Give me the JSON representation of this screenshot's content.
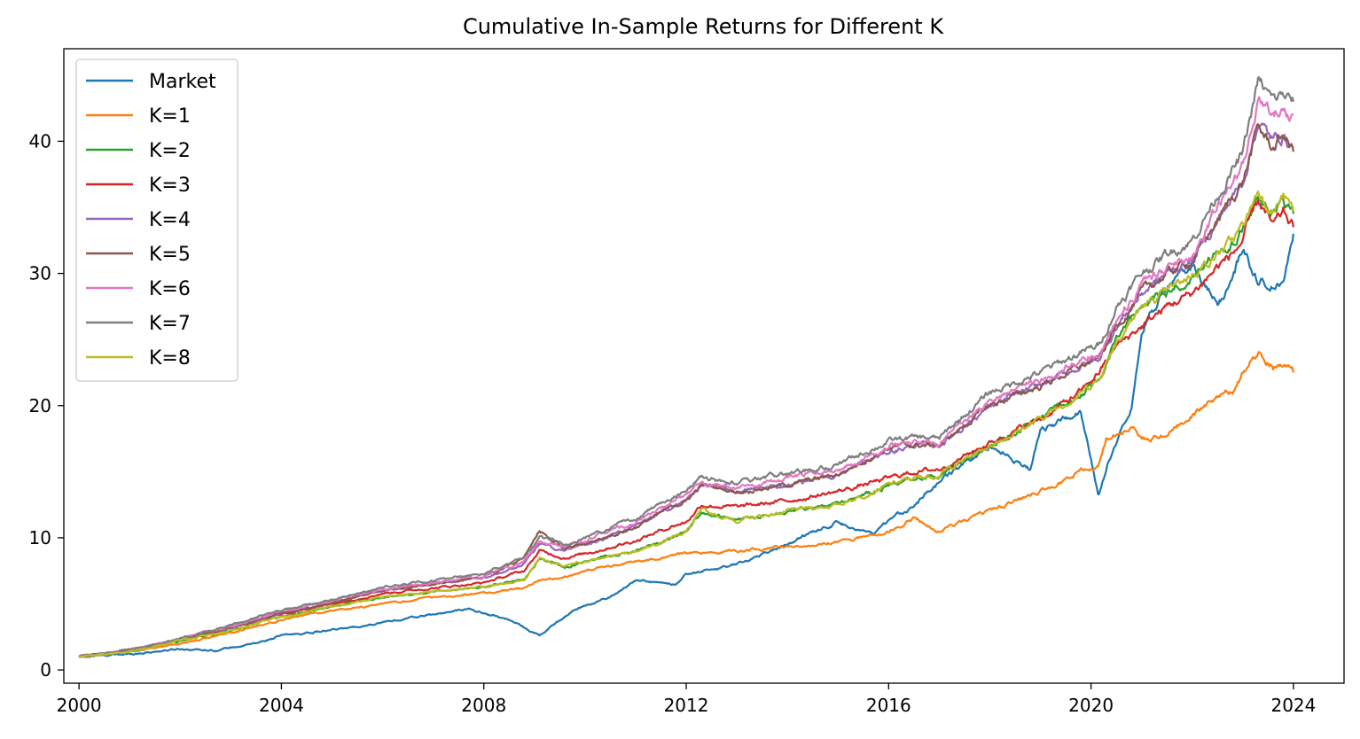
{
  "chart_data": {
    "type": "line",
    "title": "Cumulative In-Sample Returns for Different K",
    "xlabel": "",
    "ylabel": "",
    "xlim": [
      1999.7,
      2025.0
    ],
    "ylim": [
      -1.0,
      47.0
    ],
    "x_ticks": [
      2000,
      2004,
      2008,
      2012,
      2016,
      2020,
      2024
    ],
    "x_tick_labels": [
      "2000",
      "2004",
      "2008",
      "2012",
      "2016",
      "2020",
      "2024"
    ],
    "y_ticks": [
      0,
      10,
      20,
      30,
      40
    ],
    "y_tick_labels": [
      "0",
      "10",
      "20",
      "30",
      "40"
    ],
    "grid": false,
    "legend_position": "upper-left",
    "series": [
      {
        "name": "Market",
        "color": "#1f77b4",
        "x": [
          2000,
          2001,
          2002,
          2002.7,
          2003.5,
          2004,
          2005,
          2006,
          2007,
          2007.7,
          2008.5,
          2009.1,
          2009.8,
          2010.5,
          2011,
          2011.8,
          2012,
          2013,
          2014,
          2014.5,
          2015,
          2015.7,
          2016,
          2016.5,
          2017,
          2018,
          2018.8,
          2019,
          2019.8,
          2020.15,
          2020.35,
          2020.8,
          2021,
          2021.5,
          2022,
          2022.5,
          2022.8,
          2023,
          2023.3,
          2023.8,
          2024
        ],
        "values": [
          1.0,
          1.2,
          1.6,
          1.5,
          2.0,
          2.6,
          3.0,
          3.6,
          4.2,
          4.6,
          3.8,
          2.6,
          4.6,
          5.5,
          6.8,
          6.4,
          7.2,
          8.0,
          9.5,
          10.5,
          11.2,
          10.2,
          11.2,
          12.5,
          14.2,
          17.0,
          15.2,
          18.2,
          19.5,
          13.0,
          16.0,
          20.0,
          26.0,
          29.0,
          30.5,
          27.5,
          29.5,
          32.0,
          29.5,
          29.0,
          33.0
        ]
      },
      {
        "name": "K=1",
        "color": "#ff7f0e",
        "x": [
          2000,
          2001,
          2002,
          2003,
          2004,
          2005,
          2006,
          2007,
          2008,
          2008.8,
          2009.1,
          2009.6,
          2010,
          2011,
          2011.8,
          2012,
          2013,
          2014,
          2015,
          2016,
          2016.5,
          2017,
          2018,
          2019,
          2019.8,
          2020.15,
          2020.3,
          2020.8,
          2021,
          2021.5,
          2022,
          2022.5,
          2022.8,
          2023,
          2023.3,
          2023.6,
          2023.8,
          2024
        ],
        "values": [
          1.0,
          1.4,
          2.0,
          2.8,
          3.8,
          4.5,
          5.0,
          5.5,
          5.8,
          6.2,
          6.8,
          7.0,
          7.5,
          8.2,
          8.7,
          8.8,
          9.0,
          9.3,
          9.7,
          10.5,
          11.5,
          10.5,
          12.0,
          13.5,
          15.0,
          15.5,
          17.5,
          18.5,
          17.5,
          17.8,
          19.5,
          20.5,
          21.0,
          22.5,
          24.0,
          23.0,
          23.2,
          22.5
        ]
      },
      {
        "name": "K=2",
        "color": "#2ca02c",
        "x": [
          2000,
          2001,
          2002,
          2003,
          2004,
          2005,
          2006,
          2007,
          2008,
          2008.8,
          2009.1,
          2009.6,
          2010,
          2011,
          2011.8,
          2012,
          2012.3,
          2013,
          2014,
          2015,
          2016,
          2016.5,
          2017,
          2018,
          2019,
          2019.8,
          2020.15,
          2020.5,
          2021,
          2021.5,
          2022,
          2022.5,
          2022.8,
          2023,
          2023.3,
          2023.6,
          2023.8,
          2024
        ],
        "values": [
          1.0,
          1.4,
          2.2,
          3.0,
          4.0,
          4.8,
          5.5,
          5.9,
          6.3,
          6.8,
          8.5,
          7.8,
          8.2,
          9.0,
          10.2,
          10.5,
          12.0,
          11.3,
          12.0,
          12.5,
          14.0,
          14.5,
          14.8,
          17.0,
          19.0,
          21.0,
          22.0,
          25.0,
          27.5,
          28.5,
          30.0,
          31.5,
          32.5,
          33.5,
          36.0,
          34.5,
          35.5,
          34.5
        ]
      },
      {
        "name": "K=3",
        "color": "#d62728",
        "x": [
          2000,
          2001,
          2002,
          2003,
          2004,
          2005,
          2006,
          2007,
          2008,
          2008.8,
          2009.1,
          2009.6,
          2010,
          2011,
          2011.8,
          2012,
          2012.3,
          2013,
          2014,
          2015,
          2016,
          2016.5,
          2017,
          2018,
          2019,
          2019.8,
          2020.15,
          2020.5,
          2021,
          2021.5,
          2022,
          2022.5,
          2022.8,
          2023,
          2023.3,
          2023.6,
          2023.8,
          2024
        ],
        "values": [
          1.0,
          1.5,
          2.3,
          3.2,
          4.2,
          5.0,
          5.8,
          6.2,
          6.6,
          7.5,
          9.0,
          8.5,
          8.8,
          9.8,
          11.0,
          11.2,
          12.5,
          12.3,
          12.8,
          13.5,
          14.5,
          15.0,
          15.2,
          17.2,
          19.0,
          21.0,
          22.5,
          24.5,
          26.0,
          27.5,
          28.5,
          30.5,
          31.5,
          32.5,
          35.5,
          33.5,
          34.5,
          33.5
        ]
      },
      {
        "name": "K=4",
        "color": "#9467bd",
        "x": [
          2000,
          2001,
          2002,
          2003,
          2004,
          2005,
          2006,
          2007,
          2008,
          2008.8,
          2009.1,
          2009.6,
          2010,
          2011,
          2011.8,
          2012,
          2012.3,
          2013,
          2014,
          2015,
          2016,
          2016.5,
          2017,
          2018,
          2019,
          2019.8,
          2020.15,
          2020.5,
          2021,
          2021.5,
          2022,
          2022.5,
          2023,
          2023.3,
          2023.6,
          2023.8,
          2024
        ],
        "values": [
          1.0,
          1.5,
          2.3,
          3.2,
          4.3,
          5.1,
          6.0,
          6.5,
          7.0,
          8.0,
          9.5,
          9.0,
          9.5,
          10.8,
          12.5,
          12.8,
          14.0,
          13.5,
          14.0,
          14.8,
          16.5,
          17.0,
          17.0,
          20.0,
          21.5,
          23.0,
          23.5,
          26.0,
          28.5,
          30.0,
          31.0,
          34.0,
          37.0,
          41.5,
          40.0,
          40.5,
          39.5
        ]
      },
      {
        "name": "K=5",
        "color": "#8c564b",
        "x": [
          2000,
          2001,
          2002,
          2003,
          2004,
          2005,
          2006,
          2007,
          2008,
          2008.8,
          2009.1,
          2009.6,
          2010,
          2011,
          2011.8,
          2012,
          2012.3,
          2013,
          2014,
          2015,
          2016,
          2016.5,
          2017,
          2018,
          2019,
          2019.8,
          2020.15,
          2020.5,
          2021,
          2021.5,
          2022,
          2022.5,
          2023,
          2023.3,
          2023.6,
          2023.8,
          2024
        ],
        "values": [
          1.0,
          1.5,
          2.3,
          3.2,
          4.3,
          5.1,
          6.0,
          6.5,
          7.0,
          8.5,
          10.5,
          9.2,
          9.5,
          10.8,
          12.5,
          12.8,
          14.0,
          13.5,
          14.0,
          14.8,
          16.8,
          17.0,
          17.0,
          20.0,
          21.5,
          23.0,
          23.5,
          26.0,
          28.5,
          30.0,
          31.0,
          34.0,
          37.0,
          41.0,
          39.5,
          40.5,
          39.2
        ]
      },
      {
        "name": "K=6",
        "color": "#e377c2",
        "x": [
          2000,
          2001,
          2002,
          2003,
          2004,
          2005,
          2006,
          2007,
          2008,
          2008.8,
          2009.1,
          2009.6,
          2010,
          2011,
          2011.8,
          2012,
          2012.3,
          2013,
          2014,
          2015,
          2016,
          2016.5,
          2017,
          2018,
          2019,
          2019.8,
          2020.15,
          2020.5,
          2021,
          2021.5,
          2022,
          2022.5,
          2023,
          2023.3,
          2023.6,
          2023.8,
          2024
        ],
        "values": [
          1.0,
          1.5,
          2.4,
          3.3,
          4.4,
          5.2,
          6.1,
          6.6,
          7.1,
          8.2,
          9.8,
          9.3,
          9.8,
          11.2,
          12.8,
          13.2,
          14.2,
          13.8,
          14.5,
          15.2,
          17.0,
          17.3,
          17.2,
          20.5,
          22.0,
          23.5,
          24.0,
          26.5,
          29.0,
          30.5,
          31.5,
          35.0,
          38.0,
          43.0,
          42.0,
          42.5,
          42.0
        ]
      },
      {
        "name": "K=7",
        "color": "#7f7f7f",
        "x": [
          2000,
          2001,
          2002,
          2003,
          2004,
          2005,
          2006,
          2007,
          2008,
          2008.8,
          2009.1,
          2009.6,
          2010,
          2011,
          2011.8,
          2012,
          2012.3,
          2013,
          2014,
          2015,
          2016,
          2016.5,
          2017,
          2018,
          2019,
          2019.8,
          2020.15,
          2020.5,
          2021,
          2021.5,
          2022,
          2022.5,
          2023,
          2023.3,
          2023.6,
          2023.8,
          2024
        ],
        "values": [
          1.0,
          1.5,
          2.4,
          3.4,
          4.5,
          5.3,
          6.2,
          6.8,
          7.3,
          8.5,
          10.0,
          9.5,
          10.0,
          11.5,
          13.2,
          13.5,
          14.6,
          14.2,
          14.8,
          15.5,
          17.3,
          17.6,
          17.5,
          21.0,
          22.5,
          24.0,
          24.5,
          27.5,
          30.0,
          31.5,
          32.5,
          36.0,
          39.0,
          44.5,
          43.0,
          43.5,
          43.0
        ]
      },
      {
        "name": "K=8",
        "color": "#bcbd22",
        "x": [
          2000,
          2001,
          2002,
          2003,
          2004,
          2005,
          2006,
          2007,
          2008,
          2008.8,
          2009.1,
          2009.6,
          2010,
          2011,
          2011.8,
          2012,
          2012.3,
          2013,
          2014,
          2015,
          2016,
          2016.5,
          2017,
          2018,
          2019,
          2019.8,
          2020.15,
          2020.5,
          2021,
          2021.5,
          2022,
          2022.5,
          2022.8,
          2023,
          2023.3,
          2023.6,
          2023.8,
          2024
        ],
        "values": [
          1.0,
          1.4,
          2.2,
          3.0,
          4.0,
          4.8,
          5.5,
          5.9,
          6.3,
          6.8,
          8.5,
          7.8,
          8.2,
          9.0,
          10.2,
          10.5,
          12.0,
          11.3,
          12.0,
          12.5,
          14.0,
          14.5,
          14.8,
          17.0,
          19.0,
          21.0,
          22.0,
          25.0,
          27.5,
          28.5,
          30.0,
          31.5,
          32.5,
          33.5,
          36.3,
          34.8,
          35.8,
          34.7
        ]
      }
    ]
  }
}
